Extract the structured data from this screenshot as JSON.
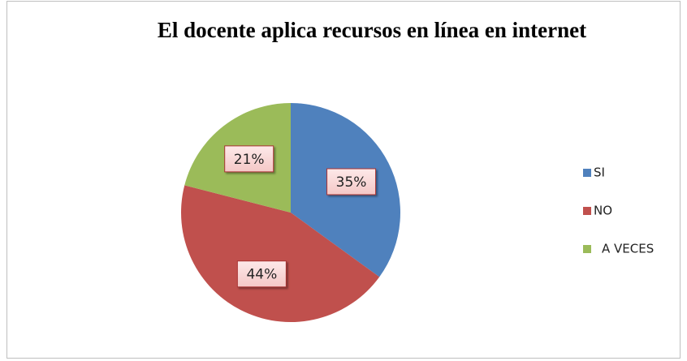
{
  "chart_data": {
    "type": "pie",
    "title": "El docente aplica recursos en línea en internet",
    "categories": [
      "SI",
      "NO",
      "A VECES"
    ],
    "values": [
      35,
      44,
      21
    ],
    "value_labels": [
      "35%",
      "44%",
      "21%"
    ],
    "colors": [
      "#4f81bd",
      "#c0504d",
      "#9bbb59"
    ],
    "legend": "right"
  }
}
